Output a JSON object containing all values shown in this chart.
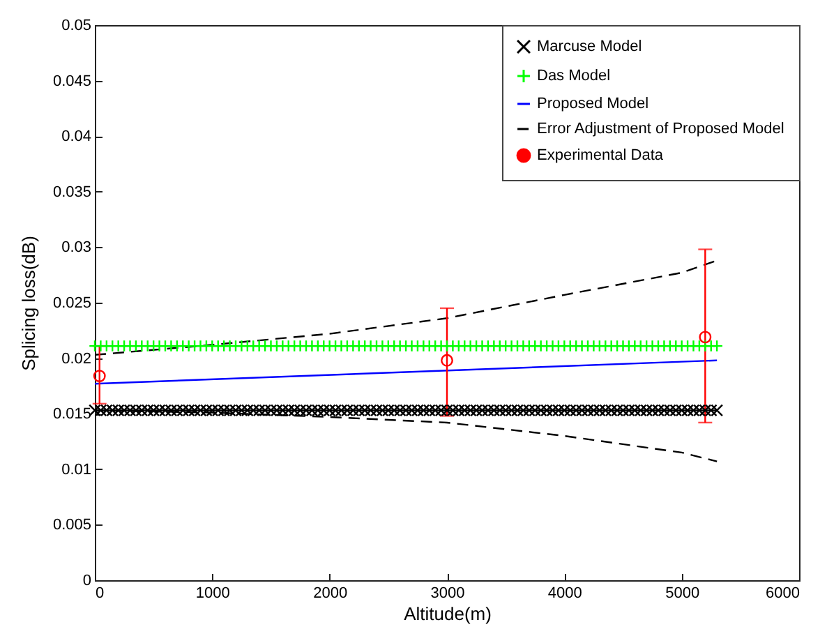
{
  "chart_data": {
    "type": "line",
    "xlabel": "Altitude(m)",
    "ylabel": "Splicing loss(dB)",
    "x": [
      0,
      50,
      100,
      150,
      200,
      250,
      300,
      350,
      400,
      450,
      500,
      550,
      600,
      650,
      700,
      750,
      800,
      850,
      900,
      950,
      1000,
      1050,
      1100,
      1150,
      1200,
      1250,
      1300,
      1350,
      1400,
      1450,
      1500,
      1550,
      1600,
      1650,
      1700,
      1750,
      1800,
      1850,
      1900,
      1950,
      2000,
      2050,
      2100,
      2150,
      2200,
      2250,
      2300,
      2350,
      2400,
      2450,
      2500,
      2550,
      2600,
      2650,
      2700,
      2750,
      2800,
      2850,
      2900,
      2950,
      3000,
      3050,
      3100,
      3150,
      3200,
      3250,
      3300,
      3350,
      3400,
      3450,
      3500,
      3550,
      3600,
      3650,
      3700,
      3750,
      3800,
      3850,
      3900,
      3950,
      4000,
      4050,
      4100,
      4150,
      4200,
      4250,
      4300,
      4350,
      4400,
      4450,
      4500,
      4550,
      4600,
      4650,
      4700,
      4750,
      4800,
      4850,
      4900,
      4950,
      5000,
      5050,
      5100,
      5150,
      5200,
      5250,
      5300
    ],
    "series": [
      {
        "name": "Marcuse Model",
        "color": "#000000",
        "marker": "x",
        "values": [
          0.0153,
          0.0153,
          0.0153,
          0.0153,
          0.0153,
          0.0153,
          0.0153,
          0.0153,
          0.0153,
          0.0153,
          0.0153,
          0.0153,
          0.0153,
          0.0153,
          0.0153,
          0.0153,
          0.0153,
          0.0153,
          0.0153,
          0.0153,
          0.0153,
          0.0153,
          0.0153,
          0.0153,
          0.0153,
          0.0153,
          0.0153,
          0.0153,
          0.0153,
          0.0153,
          0.0153,
          0.0153,
          0.0153,
          0.0153,
          0.0153,
          0.0153,
          0.0153,
          0.0153,
          0.0153,
          0.0153,
          0.0153,
          0.0153,
          0.0153,
          0.0153,
          0.0153,
          0.0153,
          0.0153,
          0.0153,
          0.0153,
          0.0153,
          0.0153,
          0.0153,
          0.0153,
          0.0153,
          0.0153,
          0.0153,
          0.0153,
          0.0153,
          0.0153,
          0.0153,
          0.0153,
          0.0153,
          0.0153,
          0.0153,
          0.0153,
          0.0153,
          0.0153,
          0.0153,
          0.0153,
          0.0153,
          0.0153,
          0.0153,
          0.0153,
          0.0153,
          0.0153,
          0.0153,
          0.0153,
          0.0153,
          0.0153,
          0.0153,
          0.0153,
          0.0153,
          0.0153,
          0.0153,
          0.0153,
          0.0153,
          0.0153,
          0.0153,
          0.0153,
          0.0153,
          0.0153,
          0.0153,
          0.0153,
          0.0153,
          0.0153,
          0.0153,
          0.0153,
          0.0153,
          0.0153,
          0.0153,
          0.0153,
          0.0153,
          0.0153,
          0.0153,
          0.0153,
          0.0153,
          0.0153
        ]
      },
      {
        "name": "Das Model",
        "color": "#00ff00",
        "marker": "cross",
        "values": [
          0.0211,
          0.0211,
          0.0211,
          0.0211,
          0.0211,
          0.0211,
          0.0211,
          0.0211,
          0.0211,
          0.0211,
          0.0211,
          0.0211,
          0.0211,
          0.0211,
          0.0211,
          0.0211,
          0.0211,
          0.0211,
          0.0211,
          0.0211,
          0.0211,
          0.0211,
          0.0211,
          0.0211,
          0.0211,
          0.0211,
          0.0211,
          0.0211,
          0.0211,
          0.0211,
          0.0211,
          0.0211,
          0.0211,
          0.0211,
          0.0211,
          0.0211,
          0.0211,
          0.0211,
          0.0211,
          0.0211,
          0.0211,
          0.0211,
          0.0211,
          0.0211,
          0.0211,
          0.0211,
          0.0211,
          0.0211,
          0.0211,
          0.0211,
          0.0211,
          0.0211,
          0.0211,
          0.0211,
          0.0211,
          0.0211,
          0.0211,
          0.0211,
          0.0211,
          0.0211,
          0.0211,
          0.0211,
          0.0211,
          0.0211,
          0.0211,
          0.0211,
          0.0211,
          0.0211,
          0.0211,
          0.0211,
          0.0211,
          0.0211,
          0.0211,
          0.0211,
          0.0211,
          0.0211,
          0.0211,
          0.0211,
          0.0211,
          0.0211,
          0.0211,
          0.0211,
          0.0211,
          0.0211,
          0.0211,
          0.0211,
          0.0211,
          0.0211,
          0.0211,
          0.0211,
          0.0211,
          0.0211,
          0.0211,
          0.0211,
          0.0211,
          0.0211,
          0.0211,
          0.0211,
          0.0211,
          0.0211,
          0.0211,
          0.0211,
          0.0211,
          0.0211,
          0.0211,
          0.0211,
          0.0211
        ]
      },
      {
        "name": "Proposed Model",
        "color": "#0000ff",
        "x": [
          0,
          5300
        ],
        "values": [
          0.0177,
          0.0198
        ]
      },
      {
        "name": "Error Adjustment of Proposed Model",
        "color": "#000000",
        "line_style": "dashed",
        "x": [
          0,
          1000,
          2000,
          3000,
          4000,
          5000,
          5300
        ],
        "values": [
          0.0203,
          0.0212,
          0.0222,
          0.0236,
          0.0257,
          0.0277,
          0.0288
        ]
      },
      {
        "color": "#000000",
        "line_style": "dashed",
        "x": [
          0,
          1000,
          2000,
          3000,
          4000,
          5000,
          5300
        ],
        "values": [
          0.0153,
          0.0151,
          0.0147,
          0.0142,
          0.013,
          0.0115,
          0.0107
        ]
      },
      {
        "name": "Experimental Data",
        "type": "scatter",
        "color": "#ff0000",
        "marker": "circle",
        "x": [
          40,
          3000,
          5200
        ],
        "values": [
          0.0184,
          0.0198,
          0.0219
        ],
        "errors": [
          [
            0.0159,
            0.0211
          ],
          [
            0.0148,
            0.0245
          ],
          [
            0.0142,
            0.0298
          ]
        ]
      }
    ],
    "xlim": [
      0,
      6000
    ],
    "xticks": [
      0,
      1000,
      2000,
      3000,
      4000,
      5000,
      6000
    ],
    "ylim": [
      0,
      0.05
    ],
    "yticks": [
      0,
      0.005,
      0.01,
      0.015,
      0.02,
      0.025,
      0.03,
      0.035,
      0.04,
      0.045,
      0.05
    ],
    "grid": false,
    "legend": "top right"
  }
}
